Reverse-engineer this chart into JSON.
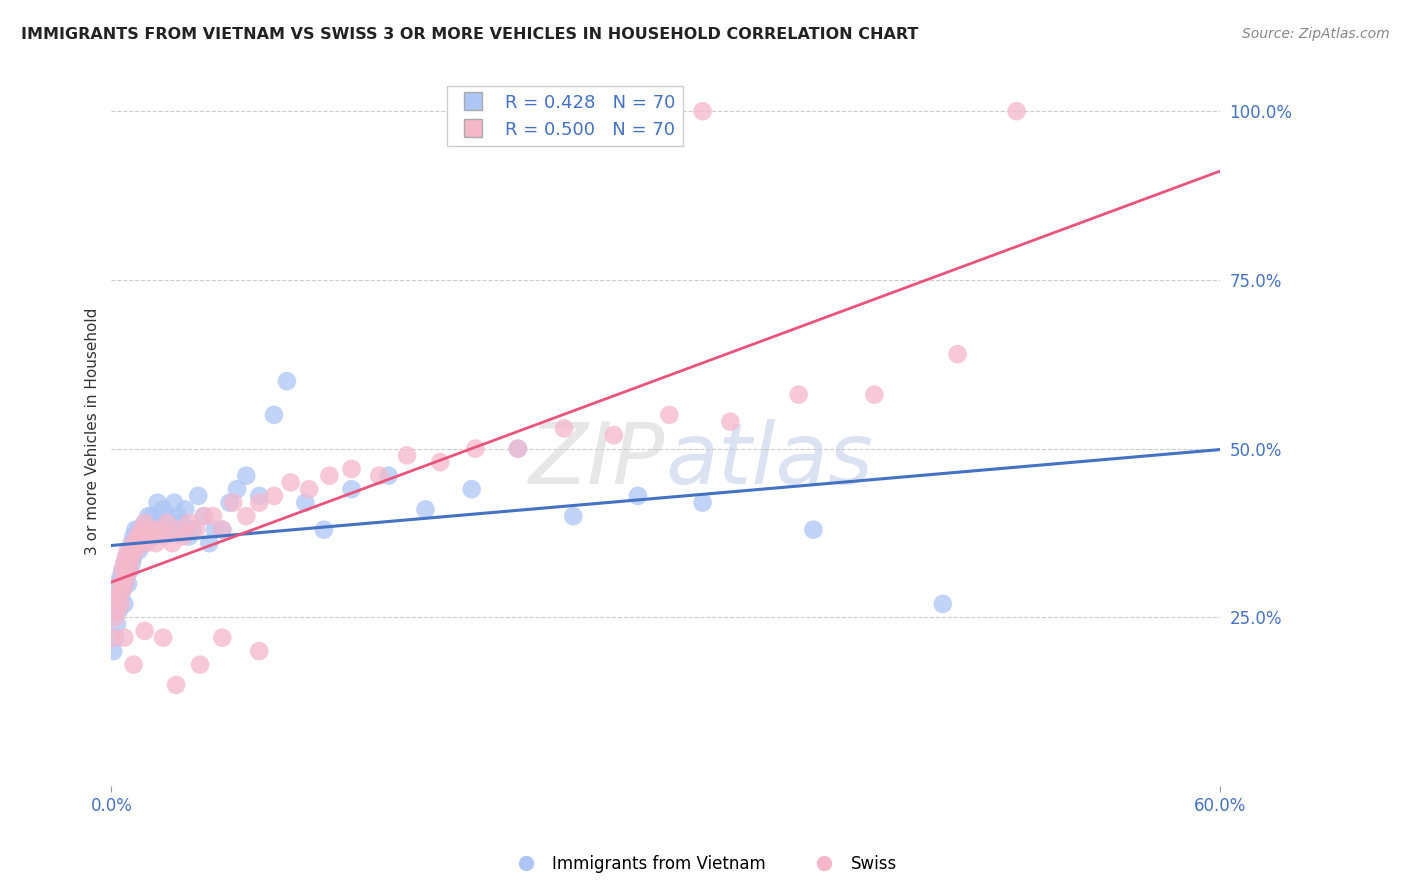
{
  "title": "IMMIGRANTS FROM VIETNAM VS SWISS 3 OR MORE VEHICLES IN HOUSEHOLD CORRELATION CHART",
  "source": "Source: ZipAtlas.com",
  "ylabel": "3 or more Vehicles in Household",
  "ytick_labels": [
    "25.0%",
    "50.0%",
    "75.0%",
    "100.0%"
  ],
  "ytick_values": [
    0.25,
    0.5,
    0.75,
    1.0
  ],
  "legend_blue_r": "R = 0.428",
  "legend_blue_n": "N = 70",
  "legend_pink_r": "R = 0.500",
  "legend_pink_n": "N = 70",
  "legend_blue_label": "Immigrants from Vietnam",
  "legend_pink_label": "Swiss",
  "blue_scatter_color": "#adc6f5",
  "pink_scatter_color": "#f5b8cb",
  "blue_line_color": "#4472c4",
  "pink_line_color": "#e8547a",
  "xmin": 0.0,
  "xmax": 0.6,
  "ymin": 0.0,
  "ymax": 1.05,
  "blue_x": [
    0.001,
    0.002,
    0.003,
    0.003,
    0.004,
    0.004,
    0.005,
    0.005,
    0.006,
    0.006,
    0.007,
    0.007,
    0.007,
    0.008,
    0.008,
    0.009,
    0.009,
    0.01,
    0.01,
    0.011,
    0.011,
    0.012,
    0.012,
    0.013,
    0.013,
    0.014,
    0.015,
    0.015,
    0.016,
    0.017,
    0.018,
    0.019,
    0.02,
    0.021,
    0.022,
    0.023,
    0.025,
    0.026,
    0.028,
    0.03,
    0.032,
    0.034,
    0.036,
    0.038,
    0.04,
    0.042,
    0.044,
    0.047,
    0.05,
    0.053,
    0.056,
    0.06,
    0.064,
    0.068,
    0.073,
    0.08,
    0.088,
    0.095,
    0.105,
    0.115,
    0.13,
    0.15,
    0.17,
    0.195,
    0.22,
    0.25,
    0.285,
    0.32,
    0.38,
    0.45
  ],
  "blue_y": [
    0.2,
    0.22,
    0.24,
    0.27,
    0.26,
    0.3,
    0.28,
    0.31,
    0.29,
    0.32,
    0.3,
    0.33,
    0.27,
    0.31,
    0.34,
    0.3,
    0.33,
    0.32,
    0.35,
    0.33,
    0.36,
    0.34,
    0.37,
    0.35,
    0.38,
    0.36,
    0.38,
    0.35,
    0.37,
    0.36,
    0.39,
    0.37,
    0.4,
    0.38,
    0.4,
    0.37,
    0.42,
    0.39,
    0.41,
    0.4,
    0.38,
    0.42,
    0.4,
    0.39,
    0.41,
    0.37,
    0.38,
    0.43,
    0.4,
    0.36,
    0.38,
    0.38,
    0.42,
    0.44,
    0.46,
    0.43,
    0.55,
    0.6,
    0.42,
    0.38,
    0.44,
    0.46,
    0.41,
    0.44,
    0.5,
    0.4,
    0.43,
    0.42,
    0.38,
    0.27
  ],
  "pink_x": [
    0.001,
    0.002,
    0.002,
    0.003,
    0.004,
    0.005,
    0.005,
    0.006,
    0.006,
    0.007,
    0.007,
    0.008,
    0.008,
    0.009,
    0.009,
    0.01,
    0.011,
    0.011,
    0.012,
    0.013,
    0.014,
    0.015,
    0.016,
    0.017,
    0.018,
    0.019,
    0.021,
    0.022,
    0.024,
    0.026,
    0.028,
    0.03,
    0.033,
    0.036,
    0.039,
    0.042,
    0.046,
    0.05,
    0.055,
    0.06,
    0.066,
    0.073,
    0.08,
    0.088,
    0.097,
    0.107,
    0.118,
    0.13,
    0.145,
    0.16,
    0.178,
    0.197,
    0.22,
    0.245,
    0.272,
    0.302,
    0.335,
    0.372,
    0.413,
    0.458,
    0.007,
    0.012,
    0.018,
    0.028,
    0.035,
    0.048,
    0.06,
    0.08,
    0.32,
    0.49
  ],
  "pink_y": [
    0.22,
    0.25,
    0.28,
    0.26,
    0.28,
    0.27,
    0.3,
    0.29,
    0.32,
    0.3,
    0.33,
    0.31,
    0.34,
    0.32,
    0.35,
    0.33,
    0.35,
    0.34,
    0.36,
    0.35,
    0.37,
    0.36,
    0.38,
    0.37,
    0.39,
    0.36,
    0.38,
    0.37,
    0.36,
    0.38,
    0.37,
    0.39,
    0.36,
    0.38,
    0.37,
    0.39,
    0.38,
    0.4,
    0.4,
    0.38,
    0.42,
    0.4,
    0.42,
    0.43,
    0.45,
    0.44,
    0.46,
    0.47,
    0.46,
    0.49,
    0.48,
    0.5,
    0.5,
    0.53,
    0.52,
    0.55,
    0.54,
    0.58,
    0.58,
    0.64,
    0.22,
    0.18,
    0.23,
    0.22,
    0.15,
    0.18,
    0.22,
    0.2,
    1.0,
    1.0
  ]
}
